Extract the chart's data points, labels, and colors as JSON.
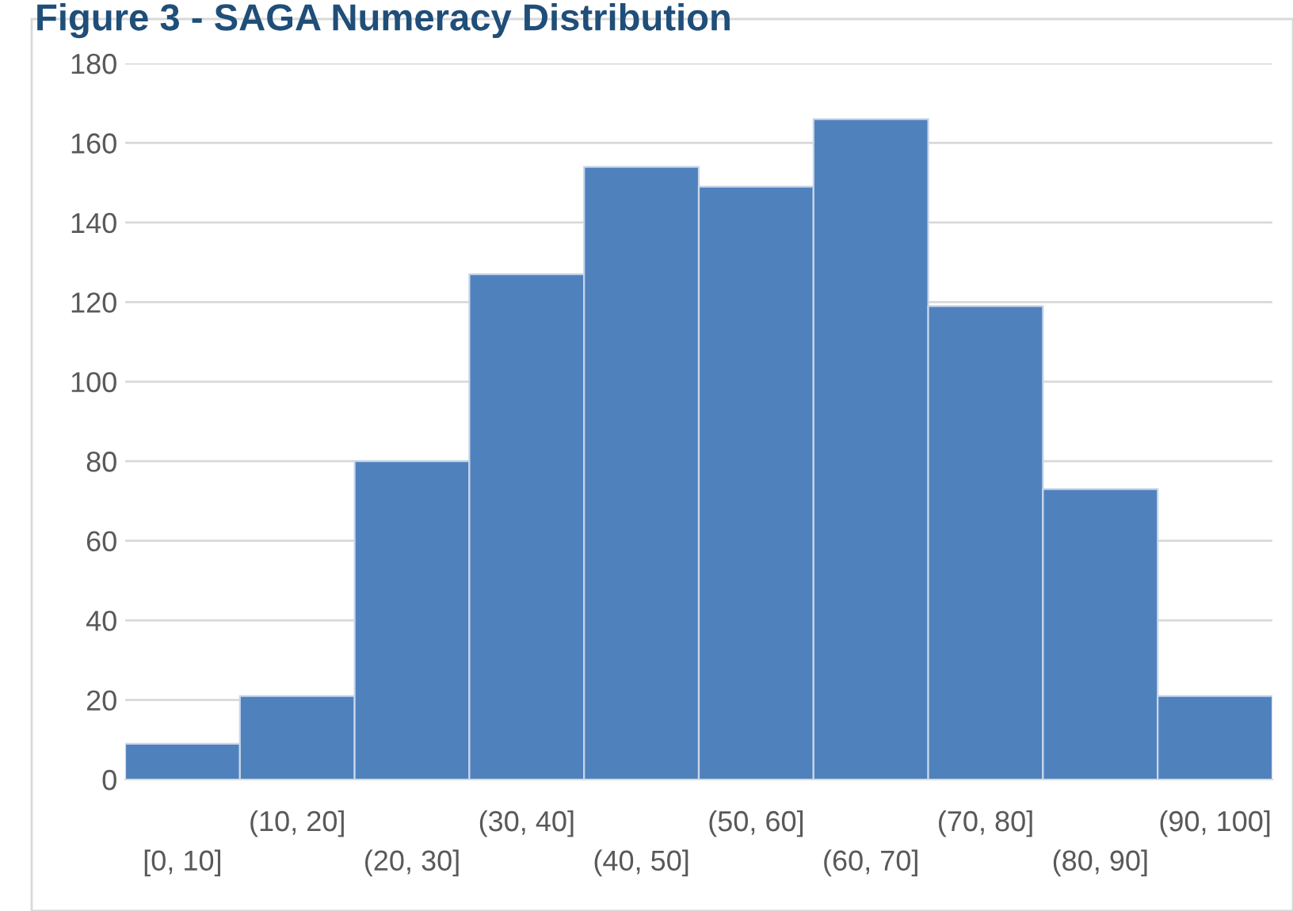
{
  "chart_data": {
    "type": "bar",
    "title": "Figure 3 - SAGA Numeracy Distribution",
    "categories": [
      "[0, 10]",
      "(10, 20]",
      "(20, 30]",
      "(30, 40]",
      "(40, 50]",
      "(50, 60]",
      "(60, 70]",
      "(70, 80]",
      "(80, 90]",
      "(90, 100]"
    ],
    "values": [
      9,
      21,
      80,
      127,
      154,
      149,
      166,
      119,
      73,
      21
    ],
    "color": "#4f81bd",
    "ylim": [
      0,
      180
    ],
    "yticks": [
      0,
      20,
      40,
      60,
      80,
      100,
      120,
      140,
      160,
      180
    ],
    "grid": "y",
    "legend": false
  }
}
